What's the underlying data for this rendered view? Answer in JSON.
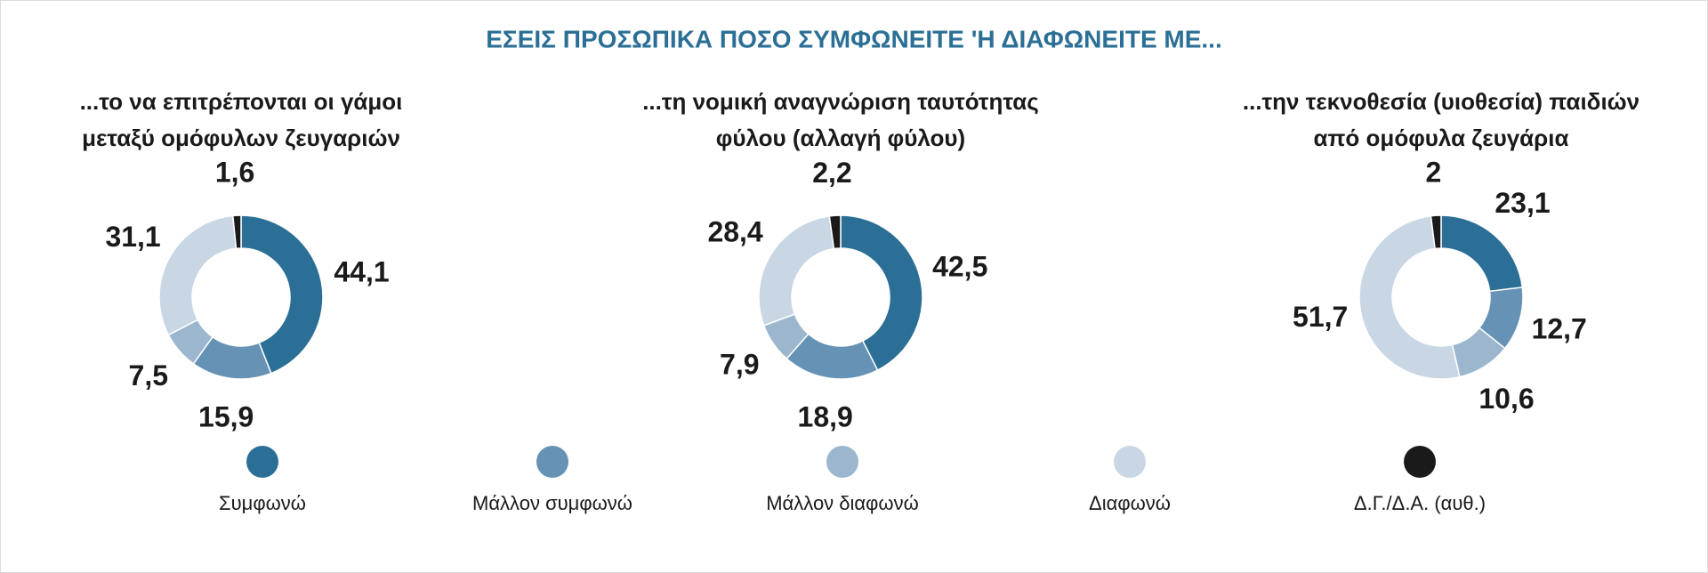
{
  "title": "ΕΣΕΙΣ ΠΡΟΣΩΠΙΚΑ ΠΟΣΟ ΣΥΜΦΩΝΕΙΤΕ 'Η ΔΙΑΦΩΝΕΙΤΕ ΜΕ...",
  "chart_data": [
    {
      "type": "donut",
      "title": [
        "...το να επιτρέπονται οι γάμοι",
        "μεταξύ ομόφυλων ζευγαριών"
      ],
      "categories": [
        "Συμφωνώ",
        "Μάλλον συμφωνώ",
        "Μάλλον διαφωνώ",
        "Διαφωνώ",
        "Δ.Γ./Δ.Α. (αυθ.)"
      ],
      "values": [
        44.1,
        15.9,
        7.5,
        31.1,
        1.6
      ],
      "value_labels": [
        "44,1",
        "15,9",
        "7,5",
        "31,1",
        "1,6"
      ],
      "colors": [
        "#2b6f96",
        "#6592b5",
        "#9bb6cd",
        "#c9d6e3",
        "#1a1a1a"
      ]
    },
    {
      "type": "donut",
      "title": [
        "...τη νομική αναγνώριση ταυτότητας",
        "φύλου (αλλαγή φύλου)"
      ],
      "categories": [
        "Συμφωνώ",
        "Μάλλον συμφωνώ",
        "Μάλλον διαφωνώ",
        "Διαφωνώ",
        "Δ.Γ./Δ.Α. (αυθ.)"
      ],
      "values": [
        42.5,
        18.9,
        7.9,
        28.4,
        2.2
      ],
      "value_labels": [
        "42,5",
        "18,9",
        "7,9",
        "28,4",
        "2,2"
      ],
      "colors": [
        "#2b6f96",
        "#6592b5",
        "#9bb6cd",
        "#c9d6e3",
        "#1a1a1a"
      ]
    },
    {
      "type": "donut",
      "title": [
        "...την τεκνοθεσία (υιοθεσία) παιδιών",
        "από ομόφυλα ζευγάρια"
      ],
      "categories": [
        "Συμφωνώ",
        "Μάλλον συμφωνώ",
        "Μάλλον διαφωνώ",
        "Διαφωνώ",
        "Δ.Γ./Δ.Α. (αυθ.)"
      ],
      "values": [
        23.1,
        12.7,
        10.6,
        51.7,
        2
      ],
      "value_labels": [
        "23,1",
        "12,7",
        "10,6",
        "51,7",
        "2"
      ],
      "colors": [
        "#2b6f96",
        "#6592b5",
        "#9bb6cd",
        "#c9d6e3",
        "#1a1a1a"
      ]
    }
  ]
}
